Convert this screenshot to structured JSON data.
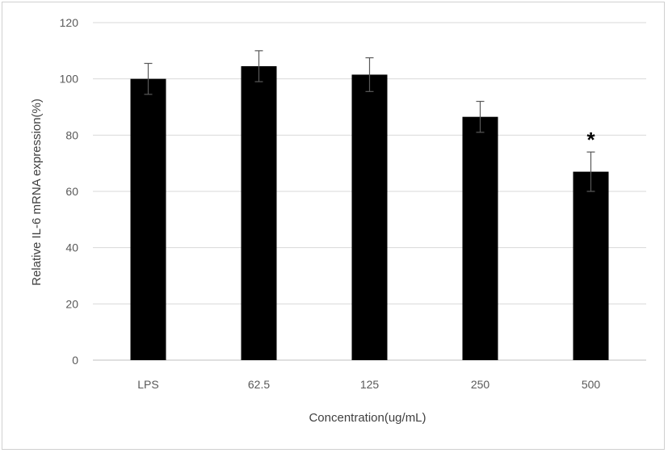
{
  "chart_data": {
    "type": "bar",
    "categories": [
      "LPS",
      "62.5",
      "125",
      "250",
      "500"
    ],
    "values": [
      100,
      104.5,
      101.5,
      86.5,
      67
    ],
    "error_bars": [
      5.5,
      5.5,
      6,
      5.5,
      7
    ],
    "annotations": [
      "",
      "",
      "",
      "",
      "*"
    ],
    "title": "",
    "xlabel": "Concentration(ug/mL)",
    "ylabel": "Relative IL-6 mRNA expression(%)",
    "ylim": [
      0,
      120
    ],
    "yticks": [
      "0",
      "20",
      "40",
      "60",
      "80",
      "100",
      "120"
    ],
    "grid": true,
    "legend": "none",
    "colors": {
      "bar": "#000000",
      "grid": "#d9d9d9",
      "axis": "#bfbfbf",
      "tick_text": "#595959",
      "error_bar": "#595959"
    }
  }
}
